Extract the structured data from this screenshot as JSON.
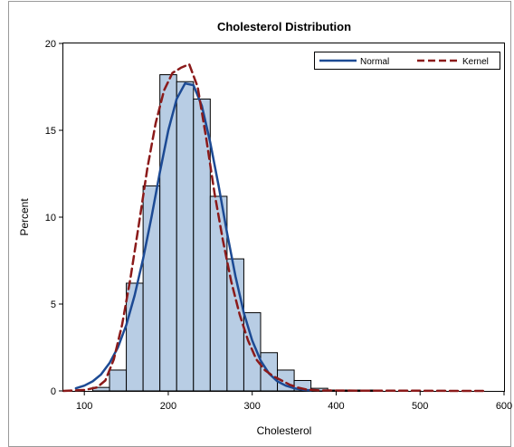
{
  "chart_data": {
    "type": "bar",
    "title": "Cholesterol Distribution",
    "xlabel": "Cholesterol",
    "ylabel": "Percent",
    "xlim": [
      75,
      600
    ],
    "ylim": [
      0,
      20
    ],
    "x_ticks": [
      100,
      200,
      300,
      400,
      500,
      600
    ],
    "y_ticks": [
      0,
      5,
      10,
      15,
      20
    ],
    "histogram": {
      "bin_width": 20,
      "bin_starts": [
        110,
        130,
        150,
        170,
        190,
        210,
        230,
        250,
        270,
        290,
        310,
        330,
        350,
        370,
        390,
        410,
        430
      ],
      "values": [
        0.2,
        1.2,
        6.2,
        11.8,
        18.2,
        17.8,
        16.8,
        11.2,
        7.6,
        4.5,
        2.2,
        1.2,
        0.6,
        0.15,
        0.05,
        0.05,
        0.05
      ],
      "fill": "#b8cde4",
      "stroke": "#000000"
    },
    "series": [
      {
        "name": "Normal",
        "style": "solid",
        "color": "#1c4a94",
        "x": [
          90,
          100,
          110,
          120,
          130,
          140,
          150,
          160,
          170,
          180,
          190,
          200,
          210,
          220,
          230,
          240,
          250,
          260,
          270,
          280,
          290,
          300,
          310,
          320,
          330,
          340,
          350,
          360,
          370
        ],
        "y": [
          0.15,
          0.3,
          0.55,
          0.95,
          1.6,
          2.5,
          3.8,
          5.5,
          7.6,
          10.0,
          12.6,
          15.0,
          16.8,
          17.7,
          17.6,
          16.4,
          14.3,
          11.8,
          9.1,
          6.6,
          4.5,
          2.9,
          1.75,
          1.0,
          0.55,
          0.3,
          0.15,
          0.07,
          0.03
        ]
      },
      {
        "name": "Kernel",
        "style": "dashed",
        "color": "#8b1a1a",
        "x": [
          75,
          100,
          115,
          125,
          135,
          145,
          155,
          165,
          175,
          185,
          195,
          205,
          215,
          225,
          235,
          245,
          255,
          265,
          275,
          285,
          295,
          305,
          315,
          325,
          335,
          345,
          355,
          365,
          380,
          400,
          450,
          500,
          550,
          575
        ],
        "y": [
          0,
          0.05,
          0.2,
          0.6,
          1.8,
          3.8,
          6.5,
          9.6,
          12.8,
          15.4,
          17.3,
          18.3,
          18.6,
          18.8,
          17.5,
          14.6,
          11.4,
          8.7,
          6.3,
          4.4,
          2.9,
          1.8,
          1.2,
          0.85,
          0.6,
          0.35,
          0.18,
          0.08,
          0.03,
          0.02,
          0.01,
          0.01,
          0.0,
          0.0
        ]
      }
    ],
    "legend": {
      "position": "top-right",
      "entries": [
        "Normal",
        "Kernel"
      ]
    },
    "grid": false
  }
}
